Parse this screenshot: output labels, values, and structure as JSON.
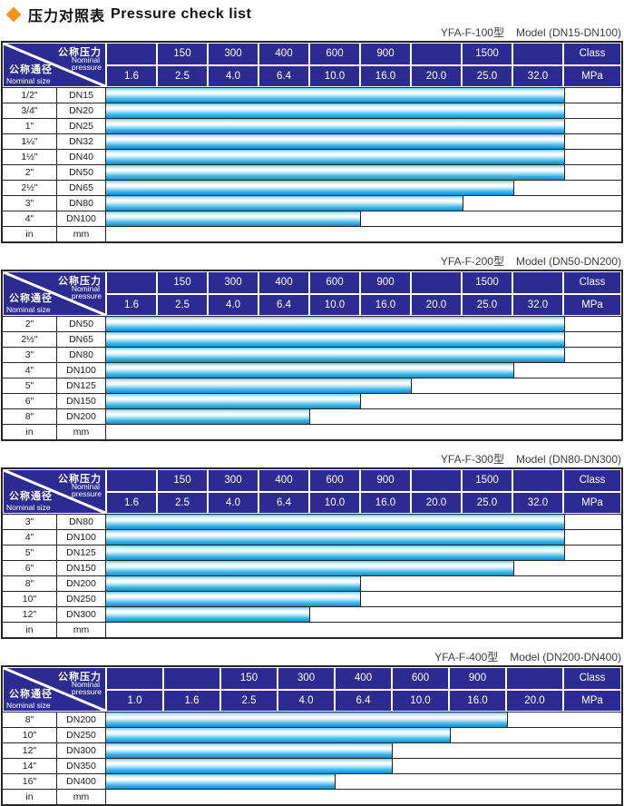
{
  "title": {
    "zh": "压力对照表",
    "en": "Pressure check list"
  },
  "colors": {
    "header_bg": "#2b2b91",
    "diamond_orange": "#F7941E",
    "bar_cyan": "#29ABE2",
    "border_dark": "#262626"
  },
  "corner": {
    "zh_pressure": "公称压力",
    "en_pressure_line1": "Nominal",
    "en_pressure_line2": "pressure",
    "zh_size": "公称通径",
    "en_size": "Nominal size"
  },
  "tables": [
    {
      "caption_model": "YFA-F-100型",
      "caption_range": "Model (DN15-DN100)",
      "class_labels": [
        "",
        "150",
        "300",
        "400",
        "600",
        "900",
        "",
        "1500",
        "",
        "Class"
      ],
      "mpa_labels": [
        "1.6",
        "2.5",
        "4.0",
        "6.4",
        "10.0",
        "16.0",
        "20.0",
        "25.0",
        "32.0",
        "MPa"
      ],
      "rows": [
        {
          "inch": "1/2\"",
          "dn": "DN15",
          "bar_cols": 9
        },
        {
          "inch": "3/4\"",
          "dn": "DN20",
          "bar_cols": 9
        },
        {
          "inch": "1\"",
          "dn": "DN25",
          "bar_cols": 9
        },
        {
          "inch": "1¼\"",
          "dn": "DN32",
          "bar_cols": 9
        },
        {
          "inch": "1½\"",
          "dn": "DN40",
          "bar_cols": 9
        },
        {
          "inch": "2\"",
          "dn": "DN50",
          "bar_cols": 9
        },
        {
          "inch": "2½\"",
          "dn": "DN65",
          "bar_cols": 8
        },
        {
          "inch": "3\"",
          "dn": "DN80",
          "bar_cols": 7
        },
        {
          "inch": "4\"",
          "dn": "DN100",
          "bar_cols": 5
        },
        {
          "inch": "in",
          "dn": "mm",
          "bar_cols": 0
        }
      ]
    },
    {
      "caption_model": "YFA-F-200型",
      "caption_range": "Model (DN50-DN200)",
      "class_labels": [
        "",
        "150",
        "300",
        "400",
        "600",
        "900",
        "",
        "1500",
        "",
        "Class"
      ],
      "mpa_labels": [
        "1.6",
        "2.5",
        "4.0",
        "6.4",
        "10.0",
        "16.0",
        "20.0",
        "25.0",
        "32.0",
        "MPa"
      ],
      "rows": [
        {
          "inch": "2\"",
          "dn": "DN50",
          "bar_cols": 9
        },
        {
          "inch": "2½\"",
          "dn": "DN65",
          "bar_cols": 9
        },
        {
          "inch": "3\"",
          "dn": "DN80",
          "bar_cols": 9
        },
        {
          "inch": "4\"",
          "dn": "DN100",
          "bar_cols": 8
        },
        {
          "inch": "5\"",
          "dn": "DN125",
          "bar_cols": 6
        },
        {
          "inch": "6\"",
          "dn": "DN150",
          "bar_cols": 5
        },
        {
          "inch": "8\"",
          "dn": "DN200",
          "bar_cols": 4
        },
        {
          "inch": "in",
          "dn": "mm",
          "bar_cols": 0
        }
      ]
    },
    {
      "caption_model": "YFA-F-300型",
      "caption_range": "Model (DN80-DN300)",
      "class_labels": [
        "",
        "150",
        "300",
        "400",
        "600",
        "900",
        "",
        "1500",
        "",
        "Class"
      ],
      "mpa_labels": [
        "1.6",
        "2.5",
        "4.0",
        "6.4",
        "10.0",
        "16.0",
        "20.0",
        "25.0",
        "32.0",
        "MPa"
      ],
      "rows": [
        {
          "inch": "3\"",
          "dn": "DN80",
          "bar_cols": 9
        },
        {
          "inch": "4\"",
          "dn": "DN100",
          "bar_cols": 9
        },
        {
          "inch": "5\"",
          "dn": "DN125",
          "bar_cols": 9
        },
        {
          "inch": "6\"",
          "dn": "DN150",
          "bar_cols": 8
        },
        {
          "inch": "8\"",
          "dn": "DN200",
          "bar_cols": 5
        },
        {
          "inch": "10\"",
          "dn": "DN250",
          "bar_cols": 5
        },
        {
          "inch": "12\"",
          "dn": "DN300",
          "bar_cols": 4
        },
        {
          "inch": "in",
          "dn": "mm",
          "bar_cols": 0
        }
      ]
    },
    {
      "caption_model": "YFA-F-400型",
      "caption_range": "Model (DN200-DN400)",
      "class_labels": [
        "",
        "",
        "150",
        "300",
        "400",
        "600",
        "900",
        "",
        "Class"
      ],
      "mpa_labels": [
        "1.0",
        "1.6",
        "2.5",
        "4.0",
        "6.4",
        "10.0",
        "16.0",
        "20.0",
        "MPa"
      ],
      "rows": [
        {
          "inch": "8\"",
          "dn": "DN200",
          "bar_cols": 7
        },
        {
          "inch": "10\"",
          "dn": "DN250",
          "bar_cols": 6
        },
        {
          "inch": "12\"",
          "dn": "DN300",
          "bar_cols": 5
        },
        {
          "inch": "14\"",
          "dn": "DN350",
          "bar_cols": 5
        },
        {
          "inch": "16\"",
          "dn": "DN400",
          "bar_cols": 4
        },
        {
          "inch": "in",
          "dn": "mm",
          "bar_cols": 0
        }
      ]
    }
  ],
  "chart_data": [
    {
      "type": "bar",
      "title": "YFA-F-100型 Model (DN15-DN100)",
      "categories": [
        "DN15",
        "DN20",
        "DN25",
        "DN32",
        "DN40",
        "DN50",
        "DN65",
        "DN80",
        "DN100"
      ],
      "values": [
        32.0,
        32.0,
        32.0,
        32.0,
        32.0,
        32.0,
        25.0,
        20.0,
        10.0
      ],
      "xlabel": "Nominal pressure (MPa)",
      "ylabel": "Nominal size",
      "xlim": [
        0,
        32.0
      ]
    },
    {
      "type": "bar",
      "title": "YFA-F-200型 Model (DN50-DN200)",
      "categories": [
        "DN50",
        "DN65",
        "DN80",
        "DN100",
        "DN125",
        "DN150",
        "DN200"
      ],
      "values": [
        32.0,
        32.0,
        32.0,
        25.0,
        16.0,
        10.0,
        6.4
      ],
      "xlabel": "Nominal pressure (MPa)",
      "ylabel": "Nominal size",
      "xlim": [
        0,
        32.0
      ]
    },
    {
      "type": "bar",
      "title": "YFA-F-300型 Model (DN80-DN300)",
      "categories": [
        "DN80",
        "DN100",
        "DN125",
        "DN150",
        "DN200",
        "DN250",
        "DN300"
      ],
      "values": [
        32.0,
        32.0,
        32.0,
        25.0,
        10.0,
        10.0,
        6.4
      ],
      "xlabel": "Nominal pressure (MPa)",
      "ylabel": "Nominal size",
      "xlim": [
        0,
        32.0
      ]
    },
    {
      "type": "bar",
      "title": "YFA-F-400型 Model (DN200-DN400)",
      "categories": [
        "DN200",
        "DN250",
        "DN300",
        "DN350",
        "DN400"
      ],
      "values": [
        16.0,
        10.0,
        6.4,
        6.4,
        4.0
      ],
      "xlabel": "Nominal pressure (MPa)",
      "ylabel": "Nominal size",
      "xlim": [
        0,
        20.0
      ]
    }
  ]
}
